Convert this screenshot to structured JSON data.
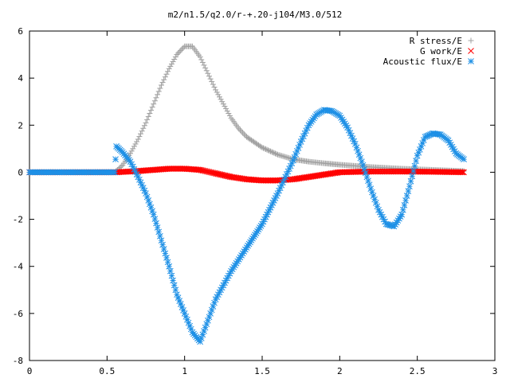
{
  "chart_data": {
    "type": "scatter",
    "title": "m2/n1.5/q2.0/r-+.20-j104/M3.0/512",
    "xlabel": "",
    "ylabel": "",
    "xlim": [
      0,
      3
    ],
    "ylim": [
      -8,
      6
    ],
    "xticks": [
      "0",
      "0.5",
      "1",
      "1.5",
      "2",
      "2.5",
      "3"
    ],
    "yticks": [
      "-8",
      "-6",
      "-4",
      "-2",
      "0",
      "2",
      "4",
      "6"
    ],
    "grid": false,
    "legend_position": "top-right",
    "series": [
      {
        "name": "R stress/E",
        "color": "#a0a0a0",
        "marker": "plus",
        "x": [
          0.0,
          0.1,
          0.2,
          0.3,
          0.4,
          0.5,
          0.55,
          0.6,
          0.65,
          0.7,
          0.75,
          0.8,
          0.85,
          0.9,
          0.95,
          1.0,
          1.05,
          1.1,
          1.15,
          1.2,
          1.25,
          1.3,
          1.35,
          1.4,
          1.5,
          1.6,
          1.7,
          1.8,
          1.9,
          2.0,
          2.2,
          2.4,
          2.6,
          2.8
        ],
        "y": [
          0.0,
          0.0,
          0.0,
          0.0,
          0.0,
          0.0,
          0.0,
          0.3,
          0.8,
          1.4,
          2.1,
          2.9,
          3.7,
          4.4,
          5.0,
          5.35,
          5.35,
          4.9,
          4.2,
          3.5,
          2.9,
          2.3,
          1.85,
          1.5,
          1.05,
          0.75,
          0.55,
          0.45,
          0.38,
          0.32,
          0.22,
          0.15,
          0.1,
          0.05
        ]
      },
      {
        "name": "G work/E",
        "color": "#ff0000",
        "marker": "cross",
        "x": [
          0.0,
          0.56,
          0.7,
          0.8,
          0.9,
          1.0,
          1.1,
          1.2,
          1.3,
          1.4,
          1.5,
          1.6,
          1.7,
          1.8,
          1.9,
          2.0,
          2.2,
          2.4,
          2.6,
          2.8
        ],
        "y": [
          0.0,
          0.0,
          0.05,
          0.1,
          0.15,
          0.15,
          0.1,
          -0.05,
          -0.2,
          -0.3,
          -0.35,
          -0.35,
          -0.3,
          -0.2,
          -0.1,
          0.0,
          0.03,
          0.03,
          0.02,
          0.0
        ]
      },
      {
        "name": "Acoustic flux/E",
        "color": "#1e90e6",
        "marker": "star",
        "x": [
          0.0,
          0.55,
          0.56,
          0.6,
          0.65,
          0.7,
          0.75,
          0.8,
          0.85,
          0.9,
          0.95,
          1.0,
          1.05,
          1.1,
          1.15,
          1.2,
          1.25,
          1.3,
          1.4,
          1.5,
          1.6,
          1.7,
          1.75,
          1.8,
          1.85,
          1.9,
          1.95,
          2.0,
          2.05,
          2.1,
          2.15,
          2.2,
          2.25,
          2.3,
          2.35,
          2.4,
          2.45,
          2.5,
          2.55,
          2.6,
          2.65,
          2.7,
          2.75,
          2.8
        ],
        "y": [
          0.0,
          0.0,
          1.1,
          0.85,
          0.45,
          -0.2,
          -0.9,
          -1.8,
          -2.9,
          -4.0,
          -5.2,
          -6.0,
          -6.8,
          -7.2,
          -6.3,
          -5.4,
          -4.8,
          -4.2,
          -3.2,
          -2.2,
          -0.9,
          0.5,
          1.3,
          2.0,
          2.45,
          2.65,
          2.6,
          2.4,
          1.9,
          1.2,
          0.3,
          -0.7,
          -1.6,
          -2.2,
          -2.3,
          -1.8,
          -0.6,
          0.7,
          1.5,
          1.65,
          1.6,
          1.35,
          0.8,
          0.55
        ]
      }
    ]
  }
}
